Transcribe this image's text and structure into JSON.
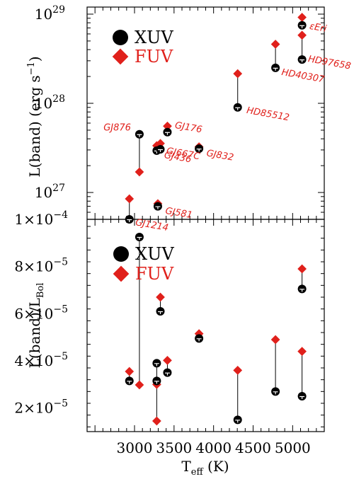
{
  "colors": {
    "xuv": "#000000",
    "fuv": "#e0201b"
  },
  "chart_data": [
    {
      "type": "scatter",
      "ylabel_parts": [
        "L(band) (erg s",
        "−1",
        ")"
      ],
      "yscale": "log",
      "xlim": [
        2400,
        5400
      ],
      "ylim": [
        5e+26,
        1.2e+29
      ],
      "ytick_labels": [
        {
          "value": 1e+27,
          "base": "10",
          "exp": "27"
        },
        {
          "value": 1e+28,
          "base": "10",
          "exp": "28"
        },
        {
          "value": 1e+29,
          "base": "10",
          "exp": "29"
        }
      ],
      "legend": {
        "position": "top-left",
        "entries": [
          "XUV",
          "FUV"
        ]
      },
      "stars": [
        {
          "label": "GJ1214",
          "teff": 2935,
          "xuv": 5e+26,
          "fuv": 8.5e+26
        },
        {
          "label": "GJ876",
          "teff": 3062,
          "xuv": 4.5e+27,
          "fuv": 1.7e+27
        },
        {
          "label": "GJ581",
          "teff": 3295,
          "xuv": 7e+26,
          "fuv": 7.5e+26
        },
        {
          "label": "GJ436",
          "teff": 3281,
          "xuv": 2.95e+27,
          "fuv": 3.35e+27
        },
        {
          "label": "GJ667C",
          "teff": 3327,
          "xuv": 3.05e+27,
          "fuv": 3.55e+27
        },
        {
          "label": "GJ176",
          "teff": 3416,
          "xuv": 4.75e+27,
          "fuv": 5.55e+27
        },
        {
          "label": "GJ832",
          "teff": 3816,
          "xuv": 3.1e+27,
          "fuv": 3.25e+27
        },
        {
          "label": "HD85512",
          "teff": 4305,
          "xuv": 9e+27,
          "fuv": 2.15e+28
        },
        {
          "label": "HD40307",
          "teff": 4783,
          "xuv": 2.5e+28,
          "fuv": 4.6e+28
        },
        {
          "label": "HD97658",
          "teff": 5119,
          "xuv": 3.1e+28,
          "fuv": 5.8e+28
        },
        {
          "label": "εEri",
          "teff": 5119,
          "xuv": 7.5e+28,
          "fuv": 9.2e+28
        }
      ]
    },
    {
      "type": "scatter",
      "ylabel_parts": [
        "L(band)/L",
        "Bol"
      ],
      "xlabel_parts": [
        "T",
        "eff",
        " (K)"
      ],
      "yscale": "linear",
      "xlim": [
        2400,
        5400
      ],
      "ylim": [
        1e-05,
        0.0001
      ],
      "ytick_labels": [
        {
          "value": 2e-05,
          "mant": "2×10",
          "exp": "−5"
        },
        {
          "value": 4e-05,
          "mant": "4×10",
          "exp": "−5"
        },
        {
          "value": 6e-05,
          "mant": "6×10",
          "exp": "−5"
        },
        {
          "value": 8e-05,
          "mant": "8×10",
          "exp": "−5"
        },
        {
          "value": 0.0001,
          "mant": "1×10",
          "exp": "−4"
        }
      ],
      "xtick_labels": [
        "3000",
        "3500",
        "4000",
        "4500",
        "5000"
      ],
      "xtick_values": [
        3000,
        3500,
        4000,
        4500,
        5000
      ],
      "legend": {
        "position": "top-left",
        "entries": [
          "XUV",
          "FUV"
        ]
      },
      "points": [
        {
          "teff": 2935,
          "xuv": 3.15e-05,
          "fuv": 3.55e-05
        },
        {
          "teff": 3062,
          "xuv": 9.25e-05,
          "fuv": 2.98e-05
        },
        {
          "teff": 3281,
          "xuv": 3.9e-05,
          "fuv": 1.45e-05
        },
        {
          "teff": 3281,
          "xuv": 3.15e-05,
          "fuv": 3e-05
        },
        {
          "teff": 3327,
          "xuv": 6.1e-05,
          "fuv": 6.7e-05
        },
        {
          "teff": 3416,
          "xuv": 3.5e-05,
          "fuv": 4.02e-05
        },
        {
          "teff": 3816,
          "xuv": 4.95e-05,
          "fuv": 5.15e-05
        },
        {
          "teff": 4305,
          "xuv": 1.5e-05,
          "fuv": 3.6e-05
        },
        {
          "teff": 4783,
          "xuv": 2.7e-05,
          "fuv": 4.9e-05
        },
        {
          "teff": 5119,
          "xuv": 2.5e-05,
          "fuv": 4.4e-05
        },
        {
          "teff": 5119,
          "xuv": 7.05e-05,
          "fuv": 7.9e-05
        }
      ]
    }
  ]
}
